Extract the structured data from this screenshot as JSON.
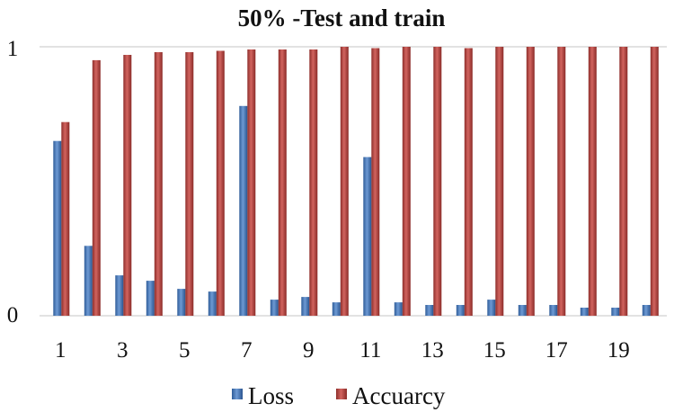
{
  "chart_data": {
    "type": "bar",
    "title": "50% -Test and  train",
    "xlabel": "",
    "ylabel": "",
    "ylim": [
      0,
      1
    ],
    "y_ticks": [
      "0",
      "1"
    ],
    "categories": [
      "1",
      "2",
      "3",
      "4",
      "5",
      "6",
      "7",
      "8",
      "9",
      "10",
      "11",
      "12",
      "13",
      "14",
      "15",
      "16",
      "17",
      "18",
      "19",
      "20"
    ],
    "x_tick_labels": [
      "1",
      "3",
      "5",
      "7",
      "9",
      "11",
      "13",
      "15",
      "17",
      "19"
    ],
    "series": [
      {
        "name": "Loss",
        "color": "#4a7fc0",
        "values": [
          0.65,
          0.26,
          0.15,
          0.13,
          0.1,
          0.09,
          0.78,
          0.06,
          0.07,
          0.05,
          0.59,
          0.05,
          0.04,
          0.04,
          0.06,
          0.04,
          0.04,
          0.03,
          0.03,
          0.04
        ]
      },
      {
        "name": "Accuarcy",
        "color": "#c0504d",
        "values": [
          0.72,
          0.95,
          0.97,
          0.98,
          0.98,
          0.985,
          0.99,
          0.99,
          0.99,
          1.0,
          0.995,
          1.0,
          1.0,
          0.995,
          1.0,
          1.0,
          1.0,
          1.0,
          1.0,
          1.0
        ]
      }
    ],
    "grid": false,
    "legend_position": "bottom"
  }
}
